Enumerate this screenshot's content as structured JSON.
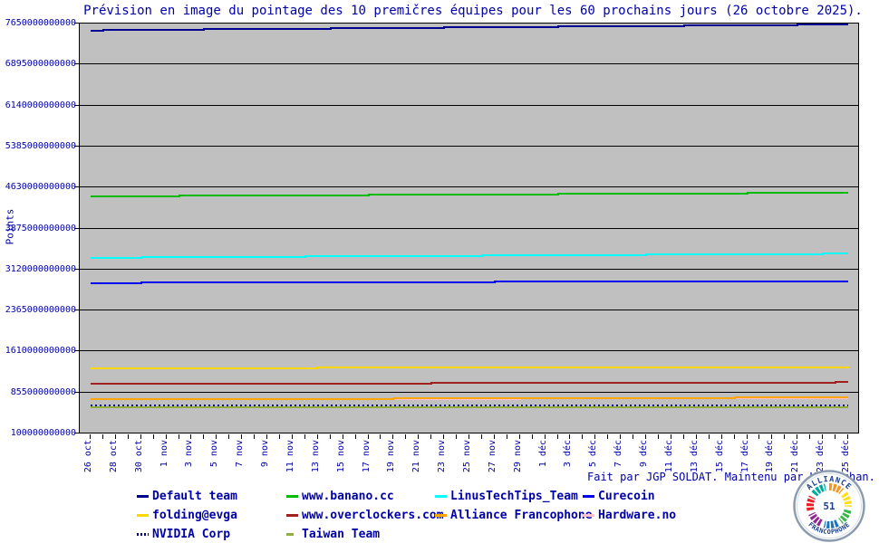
{
  "credit": "Fait par JGP SOLDAT. Maintenu par Kana-chan.",
  "colors": {
    "text": "#0000A8",
    "plot_background": "#C0C0C0",
    "page_background": "#FFFFFF",
    "grid": "#000000"
  },
  "badge": {
    "top_text": "ALLIANCE",
    "bottom_text": "FRANCOPHONE",
    "center_text": "51",
    "text_color": "#1B3F8F",
    "ring_colors": [
      "#F7941D",
      "#FFDE17",
      "#39B54A",
      "#1C75BC",
      "#92278F",
      "#ED1C24",
      "#00A99D"
    ]
  },
  "chart_data": {
    "type": "line",
    "title": "Prévision en image du pointage des 10 premičres équipes pour les 60 prochains jours (26 octobre 2025).",
    "xlabel": "",
    "ylabel": "Points",
    "grid": "horizontal-only",
    "legend_position": "bottom-left",
    "x_days_total": 61,
    "x_label_every_days": 2,
    "x_tick_labels": [
      "26 oct",
      "28 oct",
      "30 oct",
      "1 nov",
      "3 nov",
      "5 nov",
      "7 nov",
      "9 nov",
      "11 nov",
      "13 nov",
      "15 nov",
      "17 nov",
      "19 nov",
      "21 nov",
      "23 nov",
      "25 nov",
      "27 nov",
      "29 nov",
      "1 déc",
      "3 déc",
      "5 déc",
      "7 déc",
      "9 déc",
      "11 déc",
      "13 déc",
      "15 déc",
      "17 déc",
      "19 déc",
      "21 déc",
      "23 déc",
      "25 déc"
    ],
    "y_tick_labels": [
      "7650000000000",
      "6895000000000",
      "6140000000000",
      "5385000000000",
      "4630000000000",
      "3875000000000",
      "3120000000000",
      "2365000000000",
      "1610000000000",
      "855000000000",
      "100000000000"
    ],
    "ylim": [
      100000000000,
      7650000000000
    ],
    "control_days": [
      0,
      10,
      20,
      30,
      40,
      50,
      60
    ],
    "series": [
      {
        "name": "Default team",
        "color": "#000090",
        "style": "solid",
        "values_billions": [
          7540,
          7560,
          7578,
          7596,
          7614,
          7632,
          7650
        ]
      },
      {
        "name": "www.banano.cc",
        "color": "#00BB00",
        "style": "solid",
        "values_billions": [
          4463,
          4474,
          4485,
          4497,
          4508,
          4519,
          4530
        ]
      },
      {
        "name": "LinusTechTips_Team",
        "color": "#00FFFF",
        "style": "solid",
        "values_billions": [
          3326,
          3338,
          3351,
          3363,
          3376,
          3388,
          3400
        ]
      },
      {
        "name": "Curecoin",
        "color": "#0000F0",
        "style": "solid",
        "values_billions": [
          2858,
          2864,
          2870,
          2876,
          2882,
          2888,
          2893
        ]
      },
      {
        "name": "folding@evga",
        "color": "#FFD700",
        "style": "solid",
        "values_billions": [
          1276,
          1280,
          1284,
          1288,
          1292,
          1296,
          1300
        ]
      },
      {
        "name": "www.overclockers.com",
        "color": "#A02020",
        "style": "solid",
        "values_billions": [
          984,
          989,
          994,
          1000,
          1005,
          1010,
          1015
        ]
      },
      {
        "name": "Alliance Francophone",
        "color": "#FFA500",
        "style": "solid",
        "values_billions": [
          698,
          704,
          710,
          716,
          722,
          729,
          735
        ]
      },
      {
        "name": "Hardware.no",
        "color": "#FFC0CB",
        "style": "solid",
        "values_billions": [
          712,
          712,
          712,
          712,
          713,
          713,
          713
        ]
      },
      {
        "name": "NVIDIA Corp",
        "color": "#000090",
        "style": "dotted",
        "values_billions": [
          585,
          585,
          585,
          585,
          586,
          586,
          586
        ]
      },
      {
        "name": "Taiwan Team",
        "color": "#8FAE3C",
        "style": "solid",
        "values_billions": [
          560,
          560,
          560,
          560,
          560,
          560,
          560
        ]
      }
    ]
  }
}
